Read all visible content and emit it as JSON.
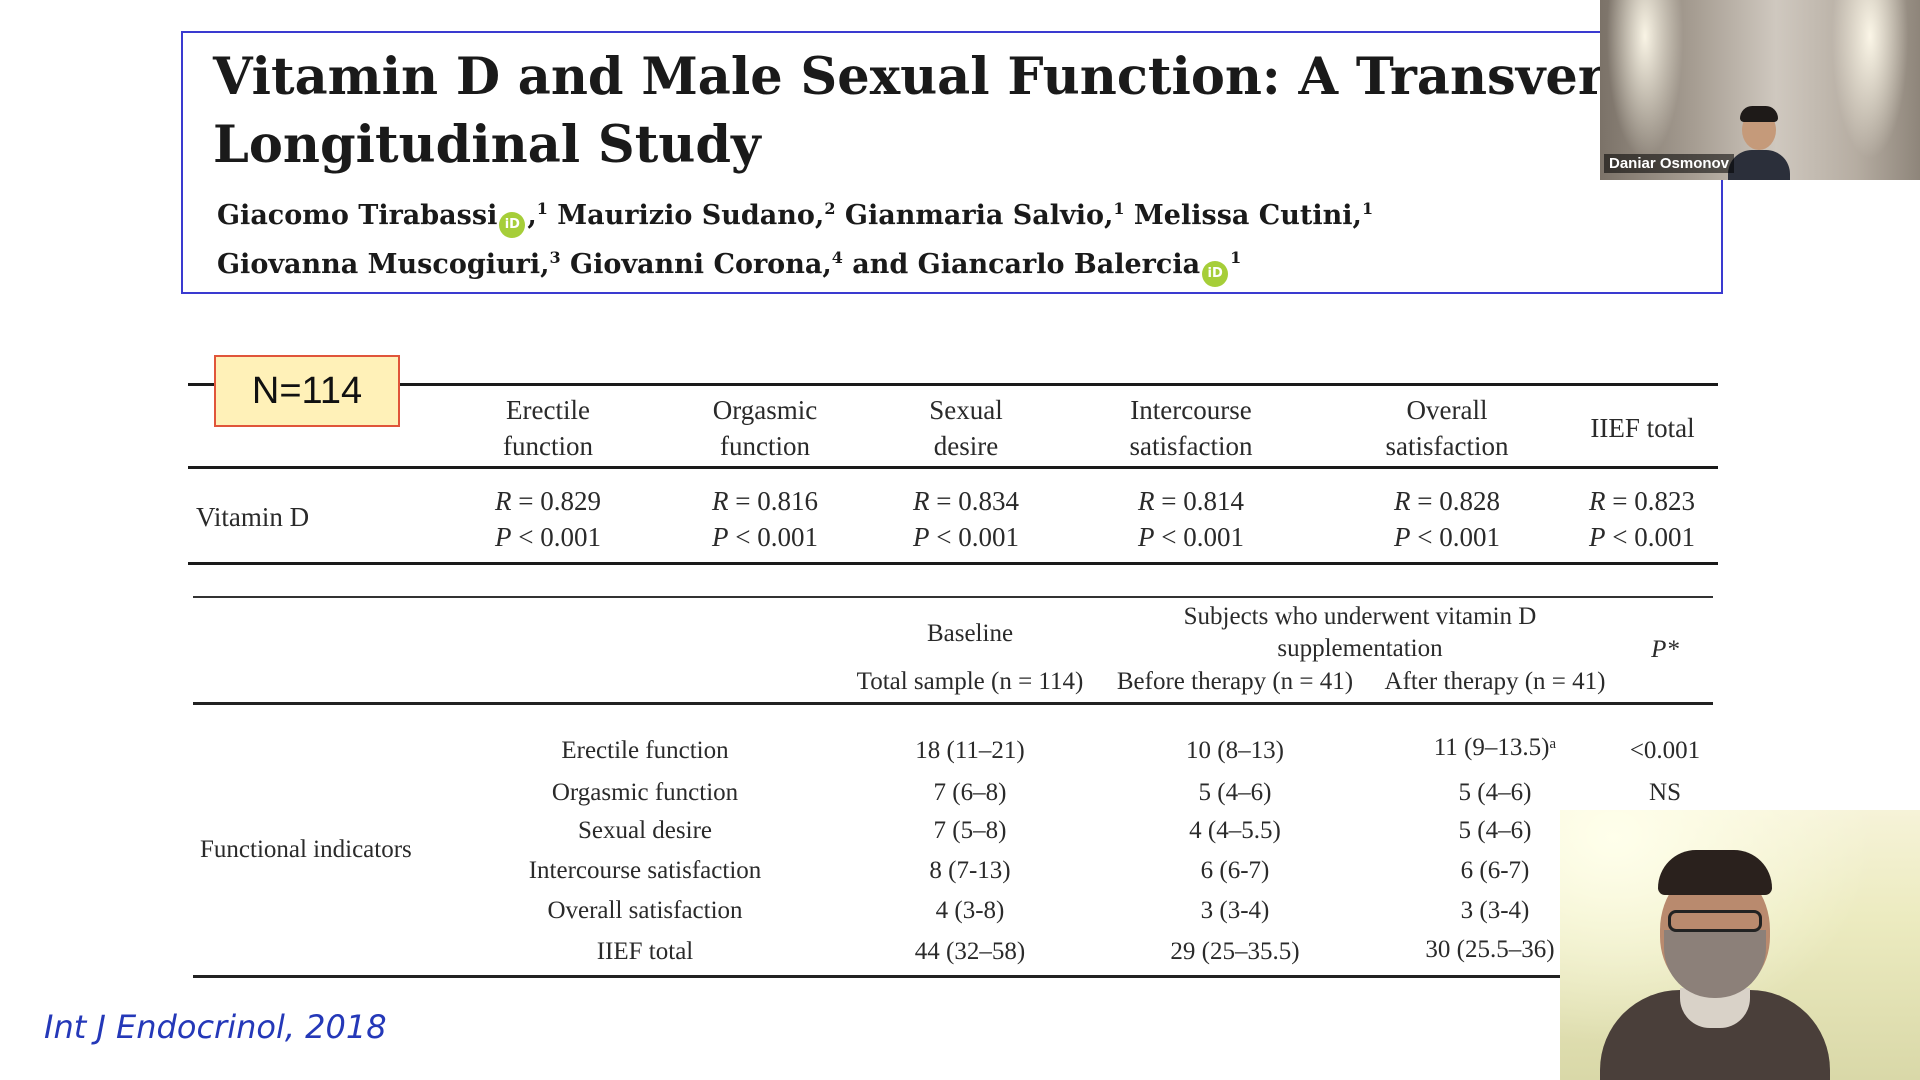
{
  "slide": {
    "paper_title_line1": "Vitamin D and Male Sexual Function: A Transversal a",
    "paper_title_line2": "Longitudinal Study",
    "authors_line1": {
      "a1": "Giacomo Tirabassi",
      "a1_sup": "1",
      "a2": "Maurizio Sudano,",
      "a2_sup": "2",
      "a3": "Gianmaria Salvio,",
      "a3_sup": "1",
      "a4": "Melissa Cutini,",
      "a4_sup": "1"
    },
    "authors_line2": {
      "a5": "Giovanna Muscogiuri,",
      "a5_sup": "3",
      "a6": "Giovanni Corona,",
      "a6_sup": "4",
      "a7": "and Giancarlo Balercia",
      "a7_sup": "1"
    },
    "orcid_label": "iD",
    "n_badge": "N=114",
    "table1": {
      "headers": [
        [
          "Erectile",
          "function"
        ],
        [
          "Orgasmic",
          "function"
        ],
        [
          "Sexual",
          "desire"
        ],
        [
          "Intercourse",
          "satisfaction"
        ],
        [
          "Overall",
          "satisfaction"
        ],
        [
          "IIEF total",
          ""
        ]
      ],
      "row_label": "Vitamin D",
      "r_values": [
        "0.829",
        "0.816",
        "0.834",
        "0.814",
        "0.828",
        "0.823"
      ],
      "p_value": "< 0.001",
      "r_symbol": "R",
      "p_symbol": "P"
    },
    "table2": {
      "baseline": "Baseline",
      "subjects_line1": "Subjects who underwent vitamin D",
      "subjects_line2": "supplementation",
      "p_header": "P*",
      "col_total": "Total sample (n = 114)",
      "col_before": "Before therapy (n = 41)",
      "col_after": "After therapy (n = 41)",
      "group_label": "Functional indicators",
      "rows": [
        {
          "label": "Erectile function",
          "total": "18 (11–21)",
          "before": "10 (8–13)",
          "after": "11 (9–13.5)ᵃ",
          "p": "<0.001"
        },
        {
          "label": "Orgasmic function",
          "total": "7 (6–8)",
          "before": "5 (4–6)",
          "after": "5 (4–6)",
          "p": "NS"
        },
        {
          "label": "Sexual desire",
          "total": "7 (5–8)",
          "before": "4 (4–5.5)",
          "after": "5 (4–6)",
          "p": ""
        },
        {
          "label": "Intercourse satisfaction",
          "total": "8 (7-13)",
          "before": "6 (6-7)",
          "after": "6 (6-7)",
          "p": ""
        },
        {
          "label": "Overall satisfaction",
          "total": "4 (3-8)",
          "before": "3 (3-4)",
          "after": "3 (3-4)",
          "p": ""
        },
        {
          "label": "IIEF total",
          "total": "44 (32–58)",
          "before": "29 (25–35.5)",
          "after": "30 (25.5–36)",
          "p": ""
        }
      ]
    },
    "citation": "Int J Endocrinol, 2018"
  },
  "video": {
    "top_participant_name": "Daniar Osmonov"
  }
}
